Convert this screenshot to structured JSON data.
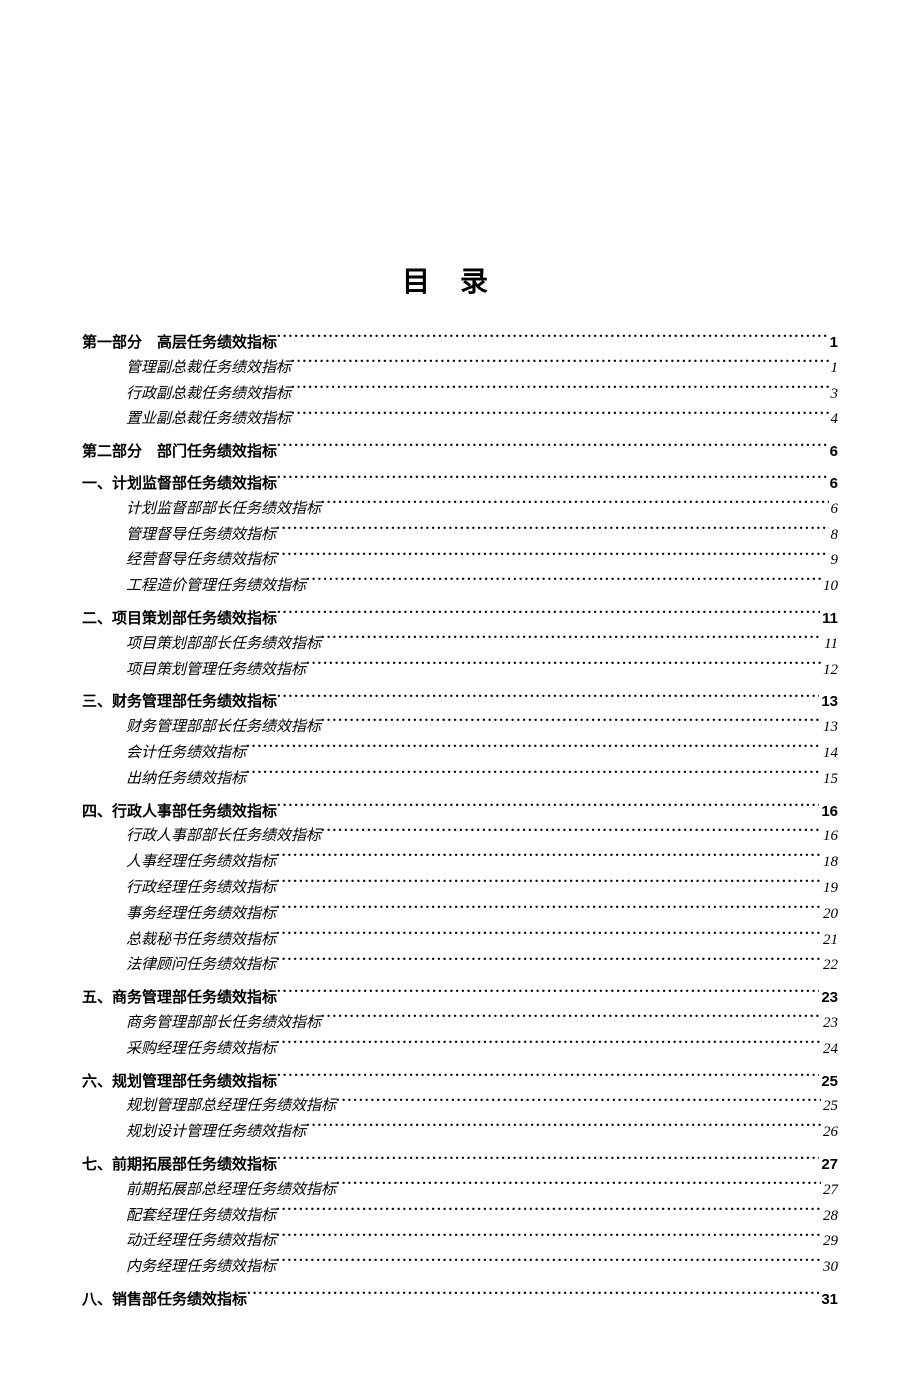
{
  "title": "目录",
  "entries": [
    {
      "level": 1,
      "label": "第一部分　高层任务绩效指标",
      "page": "1"
    },
    {
      "level": 2,
      "label": "管理副总裁任务绩效指标",
      "page": "1"
    },
    {
      "level": 2,
      "label": "行政副总裁任务绩效指标",
      "page": "3"
    },
    {
      "level": 2,
      "label": "置业副总裁任务绩效指标",
      "page": "4"
    },
    {
      "level": 1,
      "label": "第二部分　部门任务绩效指标",
      "page": "6"
    },
    {
      "level": 1,
      "label": "一、计划监督部任务绩效指标",
      "page": "6"
    },
    {
      "level": 2,
      "label": "计划监督部部长任务绩效指标",
      "page": "6"
    },
    {
      "level": 2,
      "label": "管理督导任务绩效指标",
      "page": "8"
    },
    {
      "level": 2,
      "label": "经营督导任务绩效指标",
      "page": "9"
    },
    {
      "level": 2,
      "label": "工程造价管理任务绩效指标",
      "page": "10"
    },
    {
      "level": 1,
      "label": "二、项目策划部任务绩效指标",
      "page": "11"
    },
    {
      "level": 2,
      "label": "项目策划部部长任务绩效指标",
      "page": "11"
    },
    {
      "level": 2,
      "label": "项目策划管理任务绩效指标",
      "page": "12"
    },
    {
      "level": 1,
      "label": "三、财务管理部任务绩效指标",
      "page": "13"
    },
    {
      "level": 2,
      "label": "财务管理部部长任务绩效指标",
      "page": "13"
    },
    {
      "level": 2,
      "label": "会计任务绩效指标",
      "page": "14"
    },
    {
      "level": 2,
      "label": "出纳任务绩效指标",
      "page": "15"
    },
    {
      "level": 1,
      "label": "四、行政人事部任务绩效指标",
      "page": "16"
    },
    {
      "level": 2,
      "label": "行政人事部部长任务绩效指标",
      "page": "16"
    },
    {
      "level": 2,
      "label": "人事经理任务绩效指标",
      "page": "18"
    },
    {
      "level": 2,
      "label": "行政经理任务绩效指标",
      "page": "19"
    },
    {
      "level": 2,
      "label": "事务经理任务绩效指标",
      "page": "20"
    },
    {
      "level": 2,
      "label": "总裁秘书任务绩效指标",
      "page": "21"
    },
    {
      "level": 2,
      "label": "法律顾问任务绩效指标",
      "page": "22"
    },
    {
      "level": 1,
      "label": "五、商务管理部任务绩效指标",
      "page": "23"
    },
    {
      "level": 2,
      "label": "商务管理部部长任务绩效指标",
      "page": "23"
    },
    {
      "level": 2,
      "label": "采购经理任务绩效指标",
      "page": "24"
    },
    {
      "level": 1,
      "label": "六、规划管理部任务绩效指标",
      "page": "25"
    },
    {
      "level": 2,
      "label": "规划管理部总经理任务绩效指标",
      "page": "25"
    },
    {
      "level": 2,
      "label": "规划设计管理任务绩效指标",
      "page": "26"
    },
    {
      "level": 1,
      "label": "七、前期拓展部任务绩效指标",
      "page": "27"
    },
    {
      "level": 2,
      "label": "前期拓展部总经理任务绩效指标",
      "page": "27"
    },
    {
      "level": 2,
      "label": "配套经理任务绩效指标",
      "page": "28"
    },
    {
      "level": 2,
      "label": "动迁经理任务绩效指标",
      "page": "29"
    },
    {
      "level": 2,
      "label": "内务经理任务绩效指标",
      "page": "30"
    },
    {
      "level": 1,
      "label": "八、销售部任务绩效指标",
      "page": "31"
    }
  ],
  "style": {
    "background_color": "#ffffff",
    "text_color": "#000000",
    "title_fontsize": 28,
    "body_fontsize": 15,
    "level2_indent": 44
  }
}
